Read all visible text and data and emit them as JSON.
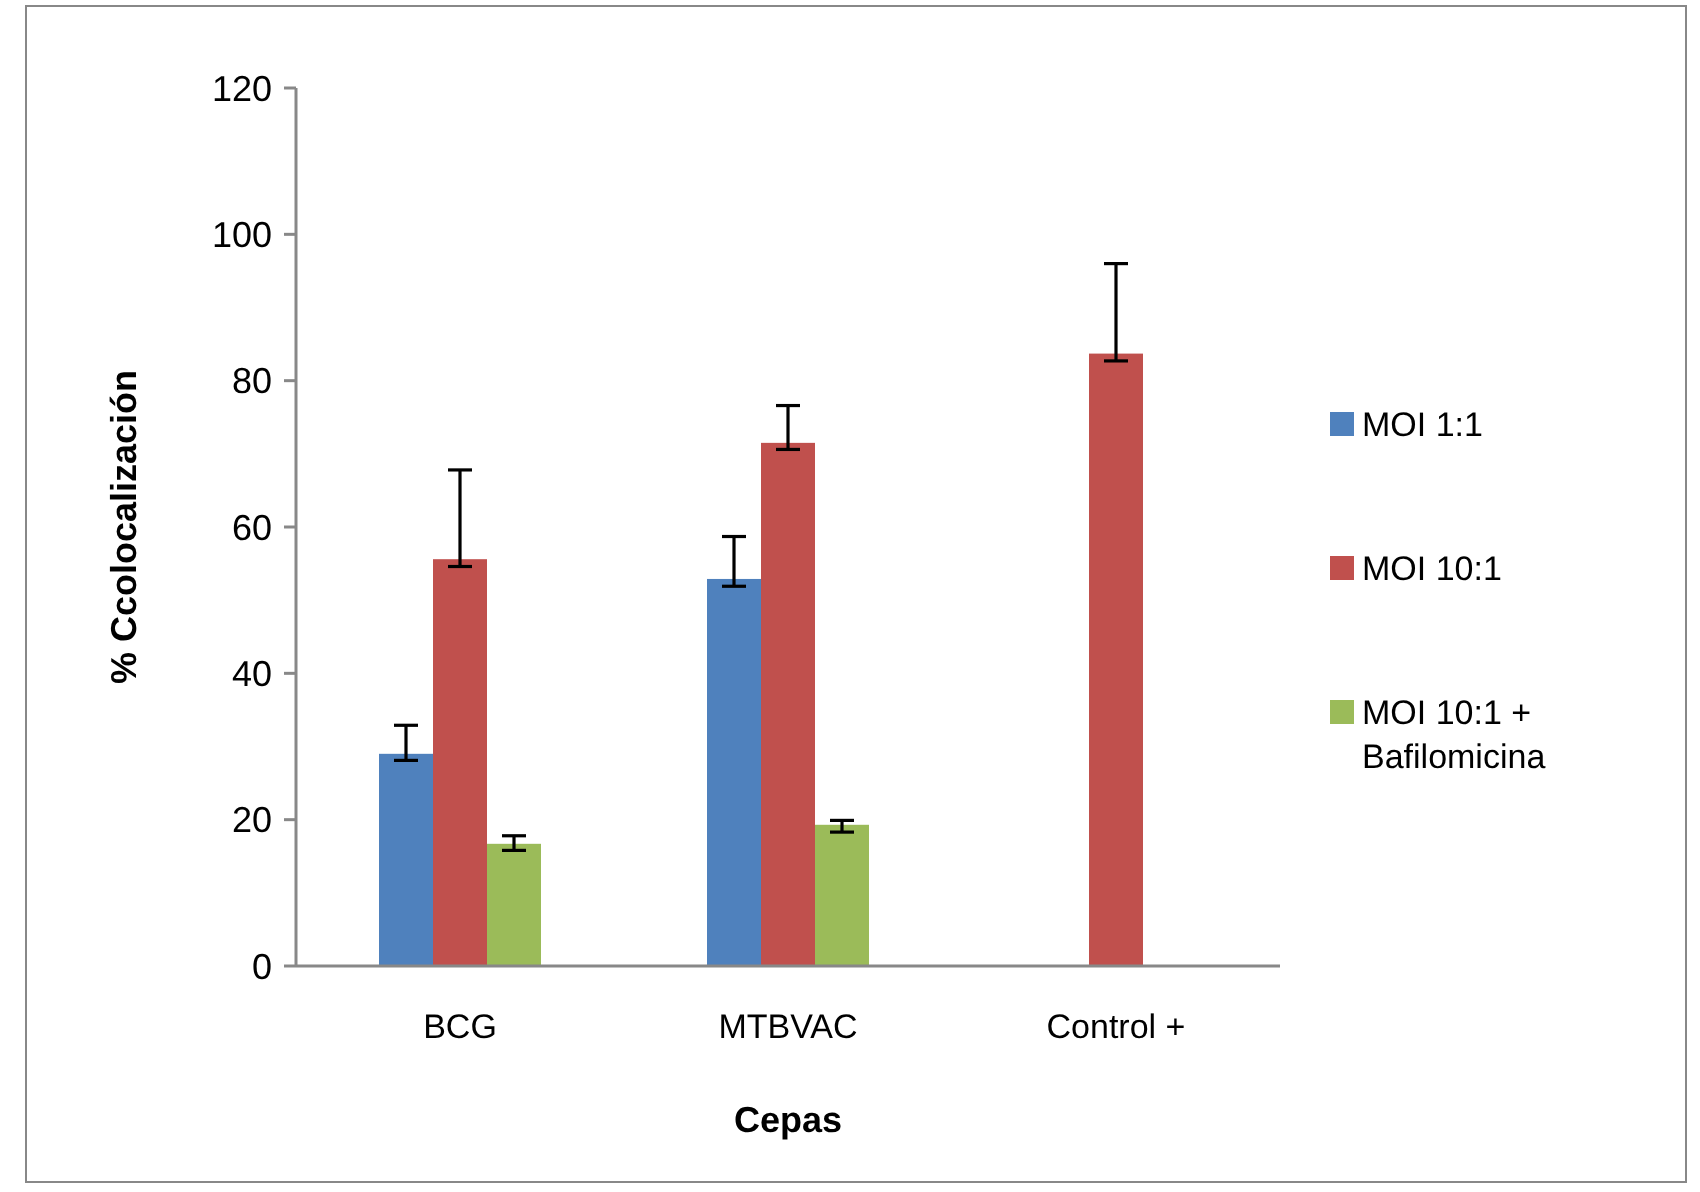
{
  "chart_data": {
    "type": "bar",
    "xlabel": "Cepas",
    "ylabel": "% Ccolocalización",
    "categories": [
      "BCG",
      "MTBVAC",
      "Control +"
    ],
    "series": [
      {
        "name": "MOI 1:1",
        "color": "#4f81bd",
        "values": [
          29.0,
          52.9,
          null
        ],
        "errors": [
          [
            28.1,
            32.9
          ],
          [
            51.9,
            58.7
          ],
          null
        ]
      },
      {
        "name": "MOI 10:1",
        "color": "#c0504d",
        "values": [
          55.6,
          71.5,
          83.7
        ],
        "errors": [
          [
            54.6,
            67.8
          ],
          [
            70.6,
            76.6
          ],
          [
            82.7,
            96.0
          ]
        ]
      },
      {
        "name": "MOI 10:1 + Bafilomicina",
        "color": "#9bbb59",
        "values": [
          16.7,
          19.3,
          null
        ],
        "errors": [
          [
            15.8,
            17.8
          ],
          [
            18.3,
            19.9
          ],
          null
        ]
      }
    ],
    "ylim": [
      0,
      120
    ],
    "yticks": [
      0,
      20,
      40,
      60,
      80,
      100,
      120
    ],
    "grid": false,
    "legend": "right"
  }
}
